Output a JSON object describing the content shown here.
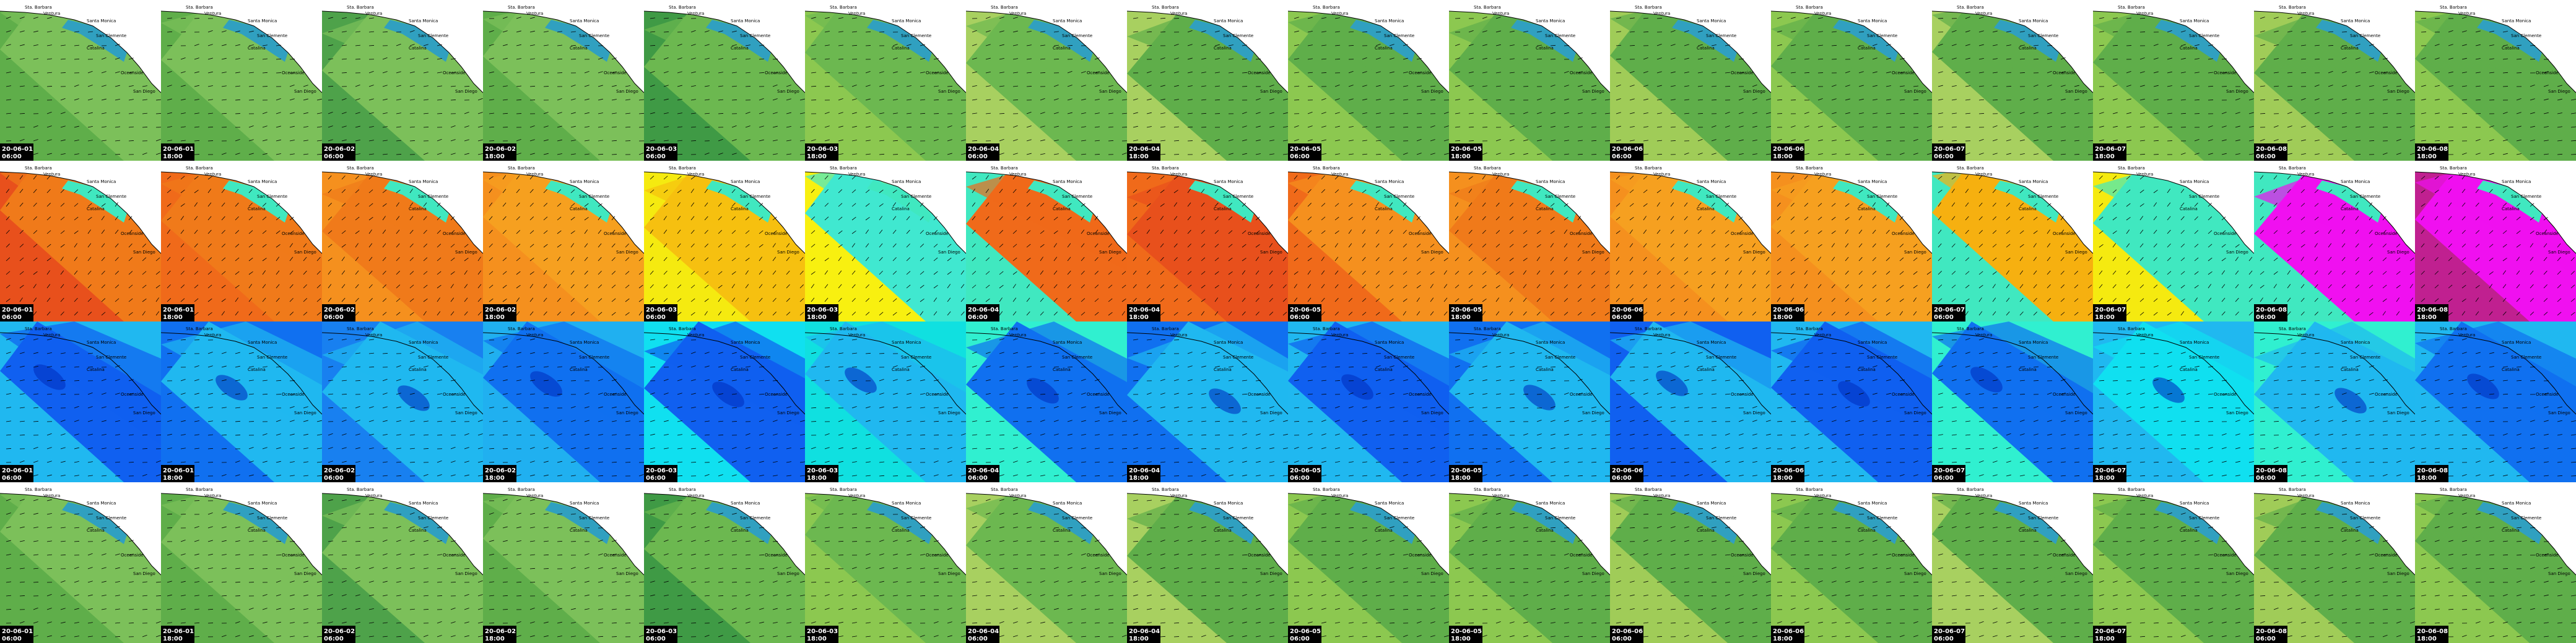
{
  "tiles": [
    {
      "date": "20-06-01",
      "time": "06:00"
    },
    {
      "date": "20-06-01",
      "time": "18:00"
    },
    {
      "date": "20-06-02",
      "time": "06:00"
    },
    {
      "date": "20-06-02",
      "time": "18:00"
    },
    {
      "date": "20-06-03",
      "time": "06:00"
    },
    {
      "date": "20-06-03",
      "time": "18:00"
    },
    {
      "date": "20-06-04",
      "time": "06:00"
    },
    {
      "date": "20-06-04",
      "time": "18:00"
    },
    {
      "date": "20-06-05",
      "time": "06:00"
    },
    {
      "date": "20-06-05",
      "time": "18:00"
    },
    {
      "date": "20-06-06",
      "time": "06:00"
    },
    {
      "date": "20-06-06",
      "time": "18:00"
    },
    {
      "date": "20-06-07",
      "time": "06:00"
    },
    {
      "date": "20-06-07",
      "time": "18:00"
    },
    {
      "date": "20-06-08",
      "time": "06:00"
    },
    {
      "date": "20-06-08",
      "time": "18:00"
    }
  ],
  "places": [
    "Sta. Barbara",
    "Ventura",
    "Santa Monica",
    "San Clemente",
    "Catalina",
    "Oceanside",
    "San Diego"
  ],
  "rows": [
    {
      "land": true,
      "colors": [
        [
          "#5fae4a",
          "#7cc05a"
        ],
        [
          "#5fae4a",
          "#7cc05a"
        ],
        [
          "#4ea24a",
          "#7cc05a"
        ],
        [
          "#5fae4a",
          "#7cc05a"
        ],
        [
          "#3f9a45",
          "#6cb850"
        ],
        [
          "#8cc850",
          "#6cb850"
        ],
        [
          "#a8d060",
          "#6cb850"
        ],
        [
          "#a8d060",
          "#5fae4a"
        ],
        [
          "#8cc850",
          "#5fae4a"
        ],
        [
          "#8cc850",
          "#5fae4a"
        ],
        [
          "#a0cc58",
          "#5fae4a"
        ],
        [
          "#8cc850",
          "#5fae4a"
        ],
        [
          "#a8d060",
          "#5fae4a"
        ],
        [
          "#8cc850",
          "#5fae4a"
        ],
        [
          "#a0cc58",
          "#5fae4a"
        ],
        [
          "#8cc850",
          "#5fae4a"
        ]
      ]
    },
    {
      "land": true,
      "colors": [
        [
          "#e8501c",
          "#f07a1a"
        ],
        [
          "#f06a1a",
          "#f07a1a"
        ],
        [
          "#f5901e",
          "#f07a1a"
        ],
        [
          "#f5901e",
          "#f6a020"
        ],
        [
          "#f5ea10",
          "#f6c010"
        ],
        [
          "#f8f010",
          "#40e8d0"
        ],
        [
          "#40e8c0",
          "#f06a1a"
        ],
        [
          "#f06a1a",
          "#e8501c"
        ],
        [
          "#f06a1a",
          "#f5901e"
        ],
        [
          "#f5901e",
          "#f07a1a"
        ],
        [
          "#f5901e",
          "#f6a020"
        ],
        [
          "#f5901e",
          "#f6a020"
        ],
        [
          "#40e8c0",
          "#f6b010"
        ],
        [
          "#f5ea10",
          "#40e8c0"
        ],
        [
          "#40e8c0",
          "#f010f0"
        ],
        [
          "#c02090",
          "#f010f0"
        ]
      ]
    },
    {
      "land": false,
      "colors": [
        [
          "#20b8f0",
          "#1060f0"
        ],
        [
          "#1070f0",
          "#20b8f0"
        ],
        [
          "#1880f0",
          "#20b8f0"
        ],
        [
          "#20b0f0",
          "#1070f0"
        ],
        [
          "#10e0f0",
          "#1060f0"
        ],
        [
          "#10e0e0",
          "#20b8f0"
        ],
        [
          "#30f0d0",
          "#1070f0"
        ],
        [
          "#1070f0",
          "#20b8f0"
        ],
        [
          "#20b8f0",
          "#1060f0"
        ],
        [
          "#1070f0",
          "#20b8f0"
        ],
        [
          "#1060f0",
          "#20b8f0"
        ],
        [
          "#20b8f0",
          "#1060f0"
        ],
        [
          "#30f0d0",
          "#1070f0"
        ],
        [
          "#20b8f0",
          "#10e0f0"
        ],
        [
          "#30f0d0",
          "#20b8f0"
        ],
        [
          "#20b8f0",
          "#1070f0"
        ]
      ]
    },
    {
      "land": true,
      "colors": [
        [
          "#5fae4a",
          "#7cc05a"
        ],
        [
          "#5fae4a",
          "#7cc05a"
        ],
        [
          "#4ea24a",
          "#7cc05a"
        ],
        [
          "#5fae4a",
          "#7cc05a"
        ],
        [
          "#3f9a45",
          "#6cb850"
        ],
        [
          "#8cc850",
          "#6cb850"
        ],
        [
          "#a8d060",
          "#6cb850"
        ],
        [
          "#a8d060",
          "#5fae4a"
        ],
        [
          "#8cc850",
          "#5fae4a"
        ],
        [
          "#8cc850",
          "#5fae4a"
        ],
        [
          "#a0cc58",
          "#5fae4a"
        ],
        [
          "#8cc850",
          "#5fae4a"
        ],
        [
          "#a8d060",
          "#5fae4a"
        ],
        [
          "#8cc850",
          "#5fae4a"
        ],
        [
          "#a0cc58",
          "#5fae4a"
        ],
        [
          "#8cc850",
          "#5fae4a"
        ]
      ]
    }
  ]
}
